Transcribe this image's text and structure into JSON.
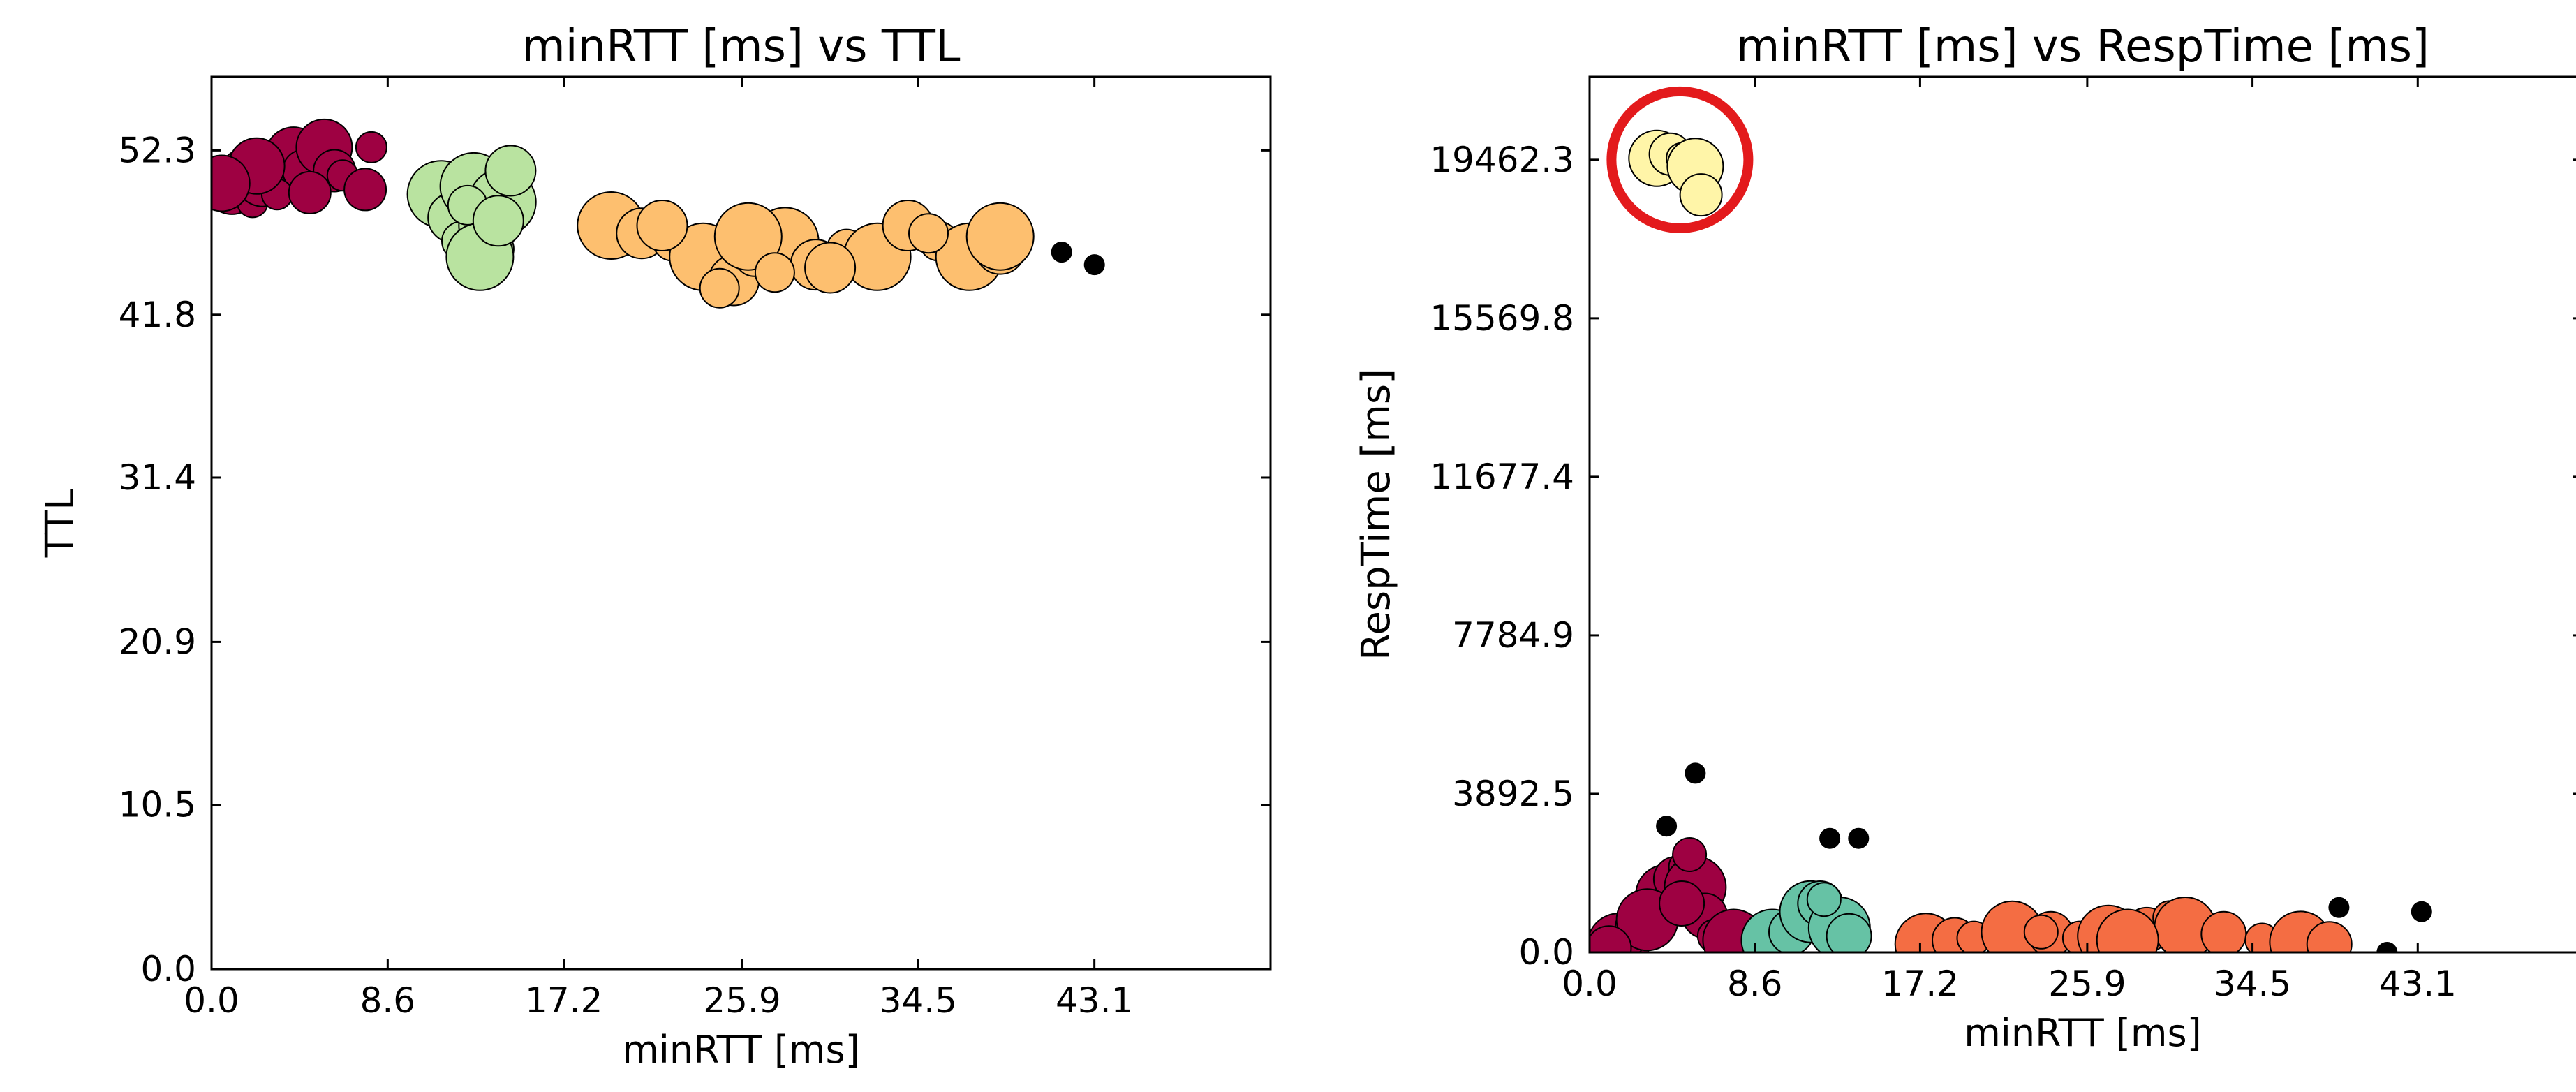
{
  "chart_data": [
    {
      "type": "scatter",
      "title": "minRTT [ms] vs TTL",
      "xlabel": "minRTT [ms]",
      "ylabel": "TTL",
      "xlim": [
        0,
        51.7
      ],
      "ylim": [
        0,
        57
      ],
      "xticks": [
        "0.0",
        "8.6",
        "17.2",
        "25.9",
        "34.5",
        "43.1"
      ],
      "xtick_values": [
        0,
        8.6,
        17.2,
        25.9,
        34.5,
        43.1
      ],
      "yticks": [
        "0.0",
        "10.5",
        "20.9",
        "31.4",
        "41.8",
        "52.3"
      ],
      "ytick_values": [
        0,
        10.5,
        20.9,
        31.4,
        41.8,
        52.3
      ],
      "grid": false,
      "series": [
        {
          "color": "#9e0142",
          "points": [
            [
              1.0,
              50
            ],
            [
              1.5,
              51
            ],
            [
              2.0,
              49
            ],
            [
              2.5,
              50.5
            ],
            [
              3.0,
              51.5
            ],
            [
              3.5,
              50
            ],
            [
              4.0,
              52
            ],
            [
              4.5,
              51
            ],
            [
              5.0,
              50
            ],
            [
              5.5,
              52.5
            ],
            [
              6.0,
              51
            ],
            [
              3.2,
              49.5
            ],
            [
              2.2,
              51.3
            ],
            [
              4.8,
              49.6
            ],
            [
              6.4,
              50.7
            ],
            [
              0.5,
              50.2
            ],
            [
              7.5,
              49.8
            ],
            [
              7.8,
              52.5
            ]
          ]
        },
        {
          "color": "#b9e3a0",
          "points": [
            [
              11.2,
              49.5
            ],
            [
              11.8,
              48
            ],
            [
              12.2,
              46.5
            ],
            [
              12.8,
              50
            ],
            [
              13.3,
              47.5
            ],
            [
              13.8,
              46
            ],
            [
              14.2,
              49
            ],
            [
              14.6,
              51
            ],
            [
              12.5,
              48.8
            ],
            [
              13.1,
              45.5
            ],
            [
              14.0,
              47.8
            ]
          ]
        },
        {
          "color": "#fdbf6f",
          "points": [
            [
              19.5,
              47.5
            ],
            [
              21,
              47
            ],
            [
              22.5,
              46.5
            ],
            [
              24,
              45.5
            ],
            [
              25.5,
              44
            ],
            [
              26.5,
              45.5
            ],
            [
              28,
              46.5
            ],
            [
              29.5,
              45
            ],
            [
              31,
              46
            ],
            [
              32.5,
              45.5
            ],
            [
              34,
              47.5
            ],
            [
              35.5,
              46.5
            ],
            [
              37,
              45.5
            ],
            [
              38.5,
              46
            ],
            [
              24.8,
              43.5
            ],
            [
              26.2,
              46.8
            ],
            [
              30.2,
              44.8
            ],
            [
              35,
              47
            ],
            [
              38.5,
              46.8
            ],
            [
              22,
              47.5
            ],
            [
              27.5,
              44.5
            ]
          ]
        },
        {
          "color": "#000000",
          "points": [
            [
              41.5,
              45.8
            ],
            [
              43.1,
              45
            ]
          ]
        }
      ]
    },
    {
      "type": "scatter",
      "title": "minRTT [ms] vs RespTime [ms]",
      "xlabel": "minRTT [ms]",
      "ylabel": "RespTime [ms]",
      "xlim": [
        0,
        51.7
      ],
      "ylim": [
        0,
        21500
      ],
      "xticks": [
        "0.0",
        "8.6",
        "17.2",
        "25.9",
        "34.5",
        "43.1"
      ],
      "xtick_values": [
        0,
        8.6,
        17.2,
        25.9,
        34.5,
        43.1
      ],
      "yticks": [
        "0.0",
        "3892.5",
        "7784.9",
        "11677.4",
        "15569.8",
        "19462.3"
      ],
      "ytick_values": [
        0,
        3892.5,
        7784.9,
        11677.4,
        15569.8,
        19462.3
      ],
      "grid": false,
      "series": [
        {
          "color": "#9e0142",
          "points": [
            [
              1.5,
              200
            ],
            [
              2.5,
              600
            ],
            [
              3.5,
              1000
            ],
            [
              4.0,
              1400
            ],
            [
              4.5,
              1800
            ],
            [
              5.0,
              2100
            ],
            [
              5.5,
              1600
            ],
            [
              6.0,
              900
            ],
            [
              2.0,
              300
            ],
            [
              3.0,
              800
            ],
            [
              4.8,
              1200
            ],
            [
              6.5,
              400
            ],
            [
              7.5,
              300
            ],
            [
              1.0,
              100
            ],
            [
              5.2,
              2400
            ]
          ]
        },
        {
          "color": "#66c2a5",
          "points": [
            [
              9.5,
              300
            ],
            [
              10.5,
              500
            ],
            [
              11.0,
              800
            ],
            [
              11.5,
              1000
            ],
            [
              12.0,
              1200
            ],
            [
              12.5,
              900
            ],
            [
              13.0,
              600
            ],
            [
              13.5,
              400
            ],
            [
              12.2,
              1300
            ]
          ]
        },
        {
          "color": "#f46d43",
          "points": [
            [
              17.5,
              200
            ],
            [
              19,
              300
            ],
            [
              20,
              350
            ],
            [
              22,
              500
            ],
            [
              24,
              450
            ],
            [
              25.5,
              350
            ],
            [
              27,
              400
            ],
            [
              29,
              550
            ],
            [
              30.2,
              850
            ],
            [
              31,
              600
            ],
            [
              33,
              450
            ],
            [
              35,
              300
            ],
            [
              37,
              250
            ],
            [
              38.5,
              200
            ],
            [
              23.5,
              500
            ],
            [
              28,
              300
            ]
          ]
        },
        {
          "color": "#fff5a8",
          "points": [
            [
              3.5,
              19500
            ],
            [
              4.2,
              19600
            ],
            [
              4.8,
              19500
            ],
            [
              5.5,
              19300
            ],
            [
              5.8,
              18600
            ]
          ]
        },
        {
          "color": "#000000",
          "points": [
            [
              4.0,
              3100
            ],
            [
              5.5,
              4400
            ],
            [
              12.5,
              2800
            ],
            [
              14.0,
              2800
            ],
            [
              39.0,
              1100
            ],
            [
              43.3,
              1000
            ],
            [
              41.5,
              0
            ]
          ]
        }
      ],
      "highlight": {
        "shape": "circle",
        "color": "#e31a1c",
        "center": [
          4.7,
          19462
        ]
      }
    }
  ]
}
